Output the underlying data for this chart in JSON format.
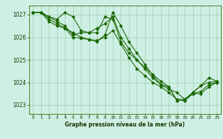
{
  "title": "Graphe pression niveau de la mer (hPa)",
  "background_color": "#cef0e4",
  "line_color": "#1a6600",
  "grid_color": "#99ccaa",
  "xlim": [
    -0.5,
    23.5
  ],
  "ylim": [
    1022.6,
    1027.4
  ],
  "yticks": [
    1023,
    1024,
    1025,
    1026,
    1027
  ],
  "xticks": [
    0,
    1,
    2,
    3,
    4,
    5,
    6,
    7,
    8,
    9,
    10,
    11,
    12,
    13,
    14,
    15,
    16,
    17,
    18,
    19,
    20,
    21,
    22,
    23
  ],
  "lines": [
    [
      1027.1,
      1027.1,
      1026.9,
      1026.8,
      1027.1,
      1026.9,
      1026.3,
      1026.2,
      1026.2,
      1026.9,
      1026.8,
      1025.8,
      1025.3,
      1025.0,
      1024.6,
      1024.2,
      1023.9,
      1023.8,
      1023.2,
      1023.2,
      1023.5,
      1023.5,
      1023.8,
      1024.0
    ],
    [
      1027.1,
      1027.1,
      1026.9,
      1026.7,
      1026.5,
      1026.1,
      1026.2,
      1026.2,
      1026.4,
      1026.6,
      1026.9,
      1026.0,
      1025.5,
      1025.0,
      1024.65,
      1024.35,
      1024.05,
      1023.8,
      1023.2,
      1023.2,
      1023.5,
      1023.6,
      1023.9,
      1024.0
    ],
    [
      1027.1,
      1027.1,
      1026.8,
      1026.6,
      1026.4,
      1026.0,
      1025.95,
      1025.9,
      1025.8,
      1026.1,
      1027.1,
      1026.5,
      1025.8,
      1025.3,
      1024.8,
      1024.3,
      1023.9,
      1023.7,
      1023.55,
      1023.25,
      1023.55,
      1023.85,
      1024.2,
      1024.05
    ],
    [
      1027.1,
      1027.1,
      1026.7,
      1026.5,
      1026.4,
      1026.2,
      1026.0,
      1025.9,
      1025.85,
      1026.0,
      1026.3,
      1025.7,
      1025.1,
      1024.6,
      1024.3,
      1024.0,
      1023.8,
      1023.55,
      1023.25,
      1023.25,
      1023.55,
      1023.85,
      1024.0,
      1024.05
    ]
  ]
}
